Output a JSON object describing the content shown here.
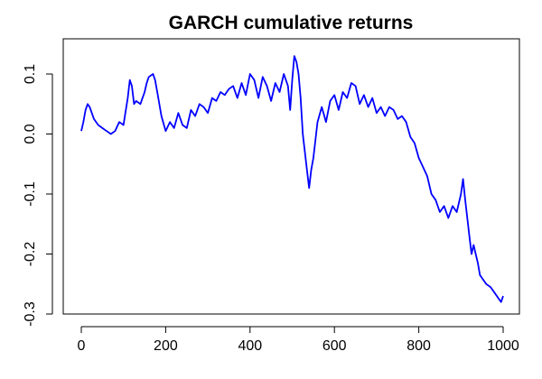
{
  "chart_data": {
    "type": "line",
    "title": "GARCH cumulative returns",
    "xlabel": "",
    "ylabel": "",
    "xlim": [
      0,
      1000
    ],
    "ylim": [
      -0.3,
      0.13
    ],
    "xticks": [
      0,
      200,
      400,
      600,
      800,
      1000
    ],
    "yticks": [
      -0.3,
      -0.2,
      -0.1,
      0.0,
      0.1
    ],
    "xtick_labels": [
      "0",
      "200",
      "400",
      "600",
      "800",
      "1000"
    ],
    "ytick_labels": [
      "-0.3",
      "-0.2",
      "-0.1",
      "0.0",
      "0.1"
    ],
    "grid": false,
    "series": [
      {
        "color": "#0000ff",
        "x": [
          0,
          5,
          10,
          15,
          20,
          30,
          40,
          50,
          60,
          70,
          80,
          90,
          100,
          110,
          115,
          120,
          125,
          130,
          140,
          150,
          155,
          160,
          170,
          175,
          180,
          190,
          200,
          210,
          220,
          230,
          240,
          250,
          260,
          270,
          280,
          290,
          300,
          310,
          320,
          330,
          340,
          350,
          360,
          370,
          380,
          390,
          400,
          410,
          420,
          430,
          440,
          450,
          460,
          470,
          480,
          490,
          495,
          500,
          505,
          510,
          515,
          520,
          525,
          530,
          535,
          540,
          545,
          550,
          555,
          560,
          570,
          580,
          590,
          600,
          610,
          620,
          630,
          640,
          650,
          660,
          670,
          680,
          690,
          700,
          710,
          720,
          730,
          740,
          750,
          760,
          770,
          780,
          790,
          800,
          810,
          820,
          830,
          840,
          850,
          860,
          870,
          880,
          890,
          900,
          905,
          910,
          915,
          920,
          925,
          930,
          935,
          940,
          945,
          950,
          960,
          970,
          980,
          990,
          995,
          1000
        ],
        "y": [
          0.005,
          0.02,
          0.04,
          0.05,
          0.045,
          0.025,
          0.015,
          0.01,
          0.005,
          0.0,
          0.005,
          0.02,
          0.015,
          0.06,
          0.09,
          0.08,
          0.05,
          0.055,
          0.05,
          0.07,
          0.085,
          0.095,
          0.1,
          0.09,
          0.07,
          0.03,
          0.005,
          0.02,
          0.01,
          0.035,
          0.015,
          0.01,
          0.04,
          0.03,
          0.05,
          0.045,
          0.035,
          0.06,
          0.055,
          0.07,
          0.065,
          0.075,
          0.08,
          0.06,
          0.085,
          0.065,
          0.1,
          0.09,
          0.06,
          0.095,
          0.08,
          0.055,
          0.085,
          0.07,
          0.1,
          0.08,
          0.04,
          0.09,
          0.13,
          0.12,
          0.1,
          0.06,
          0.0,
          -0.03,
          -0.06,
          -0.09,
          -0.06,
          -0.04,
          -0.01,
          0.02,
          0.045,
          0.02,
          0.055,
          0.065,
          0.04,
          0.07,
          0.06,
          0.085,
          0.08,
          0.05,
          0.065,
          0.045,
          0.06,
          0.035,
          0.045,
          0.03,
          0.045,
          0.04,
          0.025,
          0.03,
          0.02,
          -0.005,
          -0.015,
          -0.04,
          -0.055,
          -0.07,
          -0.1,
          -0.11,
          -0.13,
          -0.12,
          -0.14,
          -0.12,
          -0.13,
          -0.1,
          -0.075,
          -0.11,
          -0.14,
          -0.17,
          -0.2,
          -0.185,
          -0.2,
          -0.215,
          -0.235,
          -0.24,
          -0.25,
          -0.255,
          -0.265,
          -0.275,
          -0.28,
          -0.27
        ]
      }
    ]
  }
}
